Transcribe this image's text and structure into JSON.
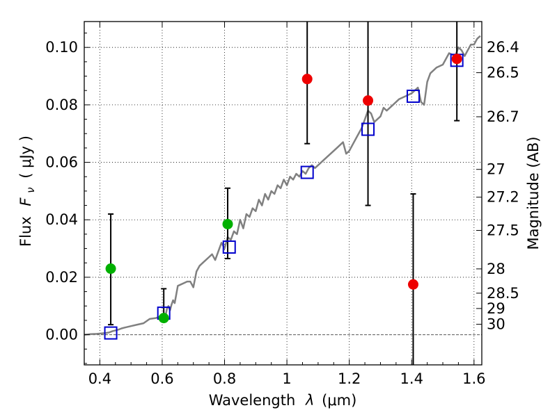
{
  "chart_data": {
    "type": "scatter",
    "xlabel_prefix": "Wavelength",
    "xlabel_symbol": "λ",
    "xlabel_unit": "(μm)",
    "ylabel_prefix": "Flux",
    "ylabel_symbol": "F",
    "ylabel_subscript": "ν",
    "ylabel_unit": "( μJy )",
    "y2label": "Magnitude (AB)",
    "xlim": [
      0.35,
      1.625
    ],
    "ylim": [
      -0.0105,
      0.109
    ],
    "xticks": [
      0.4,
      0.6,
      0.8,
      1.0,
      1.2,
      1.4,
      1.6
    ],
    "xtick_labels": [
      "0.4",
      "0.6",
      "0.8",
      "1",
      "1.2",
      "1.4",
      "1.6"
    ],
    "yticks": [
      0.0,
      0.02,
      0.04,
      0.06,
      0.08,
      0.1
    ],
    "ytick_labels": [
      "0.00",
      "0.02",
      "0.04",
      "0.06",
      "0.08",
      "0.10"
    ],
    "y2ticks": [
      {
        "label": "26.4",
        "value": 26.4
      },
      {
        "label": "26.5",
        "value": 26.5
      },
      {
        "label": "26.7",
        "value": 26.7
      },
      {
        "label": "27",
        "value": 27.0
      },
      {
        "label": "27.2",
        "value": 27.2
      },
      {
        "label": "27.5",
        "value": 27.5
      },
      {
        "label": "28",
        "value": 28.0
      },
      {
        "label": "28.5",
        "value": 28.5
      },
      {
        "label": "29",
        "value": 29.0
      },
      {
        "label": "30",
        "value": 30.0
      }
    ],
    "grid": true,
    "series": [
      {
        "name": "model SED",
        "kind": "line",
        "color": "#808080",
        "x": [
          0.35,
          0.37,
          0.39,
          0.41,
          0.42,
          0.43,
          0.44,
          0.45,
          0.46,
          0.47,
          0.48,
          0.5,
          0.52,
          0.54,
          0.56,
          0.58,
          0.6,
          0.605,
          0.61,
          0.615,
          0.62,
          0.625,
          0.63,
          0.635,
          0.64,
          0.65,
          0.66,
          0.67,
          0.68,
          0.69,
          0.7,
          0.71,
          0.72,
          0.73,
          0.74,
          0.75,
          0.76,
          0.77,
          0.78,
          0.79,
          0.8,
          0.81,
          0.82,
          0.83,
          0.84,
          0.85,
          0.86,
          0.87,
          0.88,
          0.89,
          0.9,
          0.91,
          0.92,
          0.93,
          0.94,
          0.95,
          0.96,
          0.97,
          0.98,
          0.99,
          1.0,
          1.01,
          1.02,
          1.03,
          1.04,
          1.05,
          1.06,
          1.07,
          1.08,
          1.09,
          1.1,
          1.12,
          1.14,
          1.16,
          1.18,
          1.19,
          1.2,
          1.21,
          1.22,
          1.24,
          1.25,
          1.26,
          1.27,
          1.28,
          1.29,
          1.3,
          1.31,
          1.32,
          1.34,
          1.36,
          1.38,
          1.4,
          1.42,
          1.43,
          1.44,
          1.45,
          1.46,
          1.48,
          1.5,
          1.52,
          1.54,
          1.55,
          1.56,
          1.57,
          1.58,
          1.59,
          1.6,
          1.61,
          1.62
        ],
        "y": [
          0.0,
          0.0002,
          0.0003,
          0.0005,
          0.0006,
          0.0008,
          0.0012,
          0.0015,
          0.0018,
          0.0022,
          0.0025,
          0.003,
          0.0035,
          0.004,
          0.0055,
          0.0058,
          0.0065,
          0.0075,
          0.006,
          0.009,
          0.01,
          0.0085,
          0.0105,
          0.012,
          0.011,
          0.017,
          0.0175,
          0.018,
          0.0185,
          0.0185,
          0.0165,
          0.022,
          0.024,
          0.025,
          0.026,
          0.027,
          0.028,
          0.026,
          0.029,
          0.032,
          0.03,
          0.034,
          0.033,
          0.036,
          0.035,
          0.04,
          0.037,
          0.042,
          0.041,
          0.044,
          0.043,
          0.047,
          0.045,
          0.049,
          0.047,
          0.05,
          0.049,
          0.052,
          0.051,
          0.054,
          0.052,
          0.055,
          0.054,
          0.056,
          0.055,
          0.057,
          0.056,
          0.058,
          0.059,
          0.058,
          0.059,
          0.061,
          0.063,
          0.065,
          0.067,
          0.063,
          0.064,
          0.066,
          0.068,
          0.072,
          0.075,
          0.078,
          0.077,
          0.074,
          0.075,
          0.076,
          0.079,
          0.078,
          0.08,
          0.082,
          0.083,
          0.084,
          0.086,
          0.081,
          0.08,
          0.088,
          0.091,
          0.093,
          0.094,
          0.098,
          0.097,
          0.1,
          0.099,
          0.097,
          0.099,
          0.101,
          0.101,
          0.103,
          0.104
        ]
      },
      {
        "name": "model photometry",
        "kind": "open-square",
        "color": "#0000cc",
        "x": [
          0.435,
          0.605,
          0.815,
          1.065,
          1.26,
          1.405,
          1.545
        ],
        "y": [
          0.0006,
          0.0075,
          0.0305,
          0.0565,
          0.0715,
          0.083,
          0.0955
        ]
      },
      {
        "name": "observed (green)",
        "kind": "filled-circle",
        "color": "#00b000",
        "x": [
          0.435,
          0.605,
          0.81
        ],
        "y": [
          0.023,
          0.0058,
          0.0385
        ],
        "yerr_low": [
          0.0035,
          0.0045,
          0.0265
        ],
        "yerr_high": [
          0.042,
          0.016,
          0.051
        ]
      },
      {
        "name": "observed (red)",
        "kind": "filled-circle",
        "color": "#ee0000",
        "x": [
          1.065,
          1.26,
          1.405,
          1.545
        ],
        "y": [
          0.089,
          0.0815,
          0.0175,
          0.096
        ],
        "yerr_low": [
          0.0665,
          0.045,
          -0.0105,
          0.0745
        ],
        "yerr_high": [
          0.109,
          0.109,
          0.049,
          0.109
        ]
      }
    ]
  }
}
